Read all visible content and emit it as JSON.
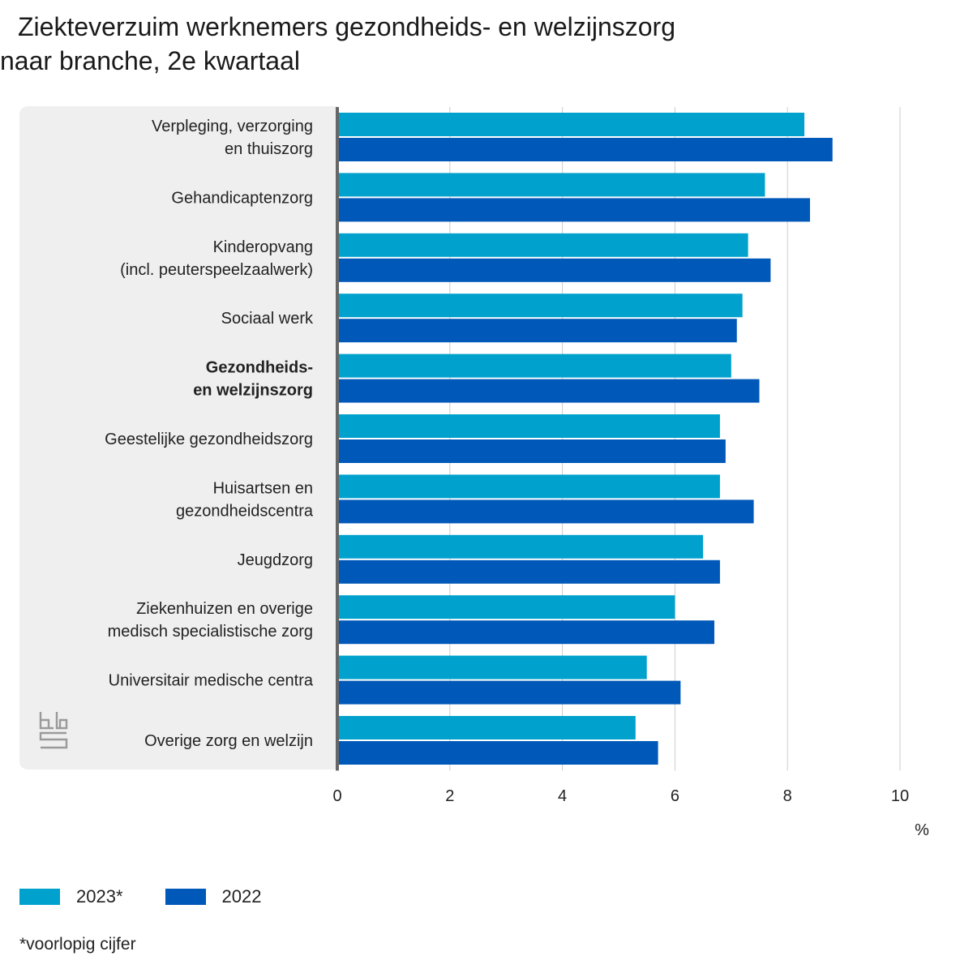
{
  "title": "Ziekteverzuim werknemers gezondheids- en welzijnszorg",
  "subtitle": "naar branche, 2e kwartaal",
  "colors": {
    "series_2023": "#00a1cd",
    "series_2022": "#0058b8",
    "grid": "#cccccc",
    "axis": "#666666",
    "panel": "#efefef"
  },
  "chart_data": {
    "type": "bar",
    "orientation": "horizontal",
    "categories": [
      [
        "Verpleging, verzorging",
        "en thuiszorg"
      ],
      [
        "Gehandicaptenzorg"
      ],
      [
        "Kinderopvang",
        "(incl. peuterspeelzaalwerk)"
      ],
      [
        "Sociaal werk"
      ],
      [
        "Gezondheids-",
        "en welzijnszorg"
      ],
      [
        "Geestelijke gezondheidszorg"
      ],
      [
        "Huisartsen en",
        "gezondheidscentra"
      ],
      [
        "Jeugdzorg"
      ],
      [
        "Ziekenhuizen en overige",
        "medisch specialistische zorg"
      ],
      [
        "Universitair medische centra"
      ],
      [
        "Overige zorg en welzijn"
      ]
    ],
    "bold_category_index": 4,
    "series": [
      {
        "name": "2023*",
        "values": [
          8.3,
          7.6,
          7.3,
          7.2,
          7.0,
          6.8,
          6.8,
          6.5,
          6.0,
          5.5,
          5.3
        ]
      },
      {
        "name": "2022",
        "values": [
          8.8,
          8.4,
          7.7,
          7.1,
          7.5,
          6.9,
          7.4,
          6.8,
          6.7,
          6.1,
          5.7
        ]
      }
    ],
    "xlim": [
      0,
      10
    ],
    "xticks": [
      0,
      2,
      4,
      6,
      8,
      10
    ],
    "xlabel": "%",
    "grid": true,
    "legend_position": "bottom-left"
  },
  "legend": {
    "items": [
      "2023*",
      "2022"
    ]
  },
  "footnote": "*voorlopig cijfer",
  "logo": "cbs-logo"
}
